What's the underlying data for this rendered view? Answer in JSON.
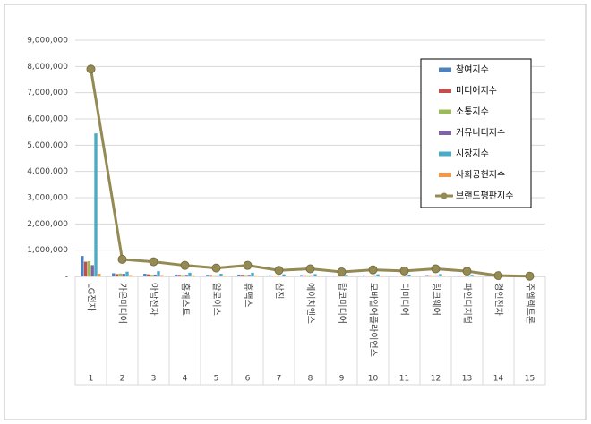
{
  "chart_data": {
    "type": "bar-line",
    "categories": [
      "LG전자",
      "가온미디어",
      "아남전자",
      "홈캐스트",
      "알로이스",
      "휴맥스",
      "삼진",
      "에이치앤스",
      "탑코미디어",
      "모바일어플라이언스",
      "디미디어",
      "팅크웨어",
      "파인디지털",
      "경인전자",
      "주엘렉트론"
    ],
    "index_labels": [
      "1",
      "2",
      "3",
      "4",
      "5",
      "6",
      "7",
      "8",
      "9",
      "10",
      "11",
      "12",
      "13",
      "14",
      "15"
    ],
    "series": [
      {
        "name": "참여지수",
        "color": "#4f81bd",
        "kind": "bar",
        "values": [
          780000,
          120000,
          100000,
          70000,
          60000,
          70000,
          40000,
          50000,
          30000,
          40000,
          30000,
          50000,
          30000,
          5000,
          2000
        ]
      },
      {
        "name": "미디어지수",
        "color": "#c0504d",
        "kind": "bar",
        "values": [
          560000,
          90000,
          80000,
          60000,
          50000,
          60000,
          30000,
          40000,
          20000,
          30000,
          30000,
          40000,
          30000,
          5000,
          2000
        ]
      },
      {
        "name": "소통지수",
        "color": "#9bbb59",
        "kind": "bar",
        "values": [
          580000,
          110000,
          60000,
          50000,
          40000,
          50000,
          30000,
          40000,
          20000,
          30000,
          30000,
          40000,
          30000,
          5000,
          2000
        ]
      },
      {
        "name": "커뮤니티지수",
        "color": "#8064a2",
        "kind": "bar",
        "values": [
          430000,
          100000,
          70000,
          60000,
          40000,
          60000,
          30000,
          40000,
          20000,
          40000,
          30000,
          40000,
          30000,
          5000,
          2000
        ]
      },
      {
        "name": "시장지수",
        "color": "#4bacc6",
        "kind": "bar",
        "values": [
          5450000,
          180000,
          200000,
          140000,
          100000,
          140000,
          80000,
          90000,
          60000,
          80000,
          70000,
          90000,
          60000,
          5000,
          1000
        ]
      },
      {
        "name": "사회공헌지수",
        "color": "#f79646",
        "kind": "bar",
        "values": [
          100000,
          50000,
          50000,
          40000,
          30000,
          40000,
          20000,
          30000,
          20000,
          30000,
          20000,
          30000,
          20000,
          5000,
          1000
        ]
      },
      {
        "name": "브랜드평판지수",
        "color": "#948a54",
        "kind": "line",
        "values": [
          7900000,
          650000,
          560000,
          420000,
          320000,
          420000,
          230000,
          290000,
          170000,
          250000,
          210000,
          290000,
          200000,
          30000,
          10000
        ]
      }
    ],
    "ylim": [
      0,
      9000000
    ],
    "yticks": [
      {
        "value": 0,
        "label": "-"
      },
      {
        "value": 1000000,
        "label": "1,000,000"
      },
      {
        "value": 2000000,
        "label": "2,000,000"
      },
      {
        "value": 3000000,
        "label": "3,000,000"
      },
      {
        "value": 4000000,
        "label": "4,000,000"
      },
      {
        "value": 5000000,
        "label": "5,000,000"
      },
      {
        "value": 6000000,
        "label": "6,000,000"
      },
      {
        "value": 7000000,
        "label": "7,000,000"
      },
      {
        "value": 8000000,
        "label": "8,000,000"
      },
      {
        "value": 9000000,
        "label": "9,000,000"
      }
    ],
    "grid": true,
    "legend": "upper right"
  }
}
